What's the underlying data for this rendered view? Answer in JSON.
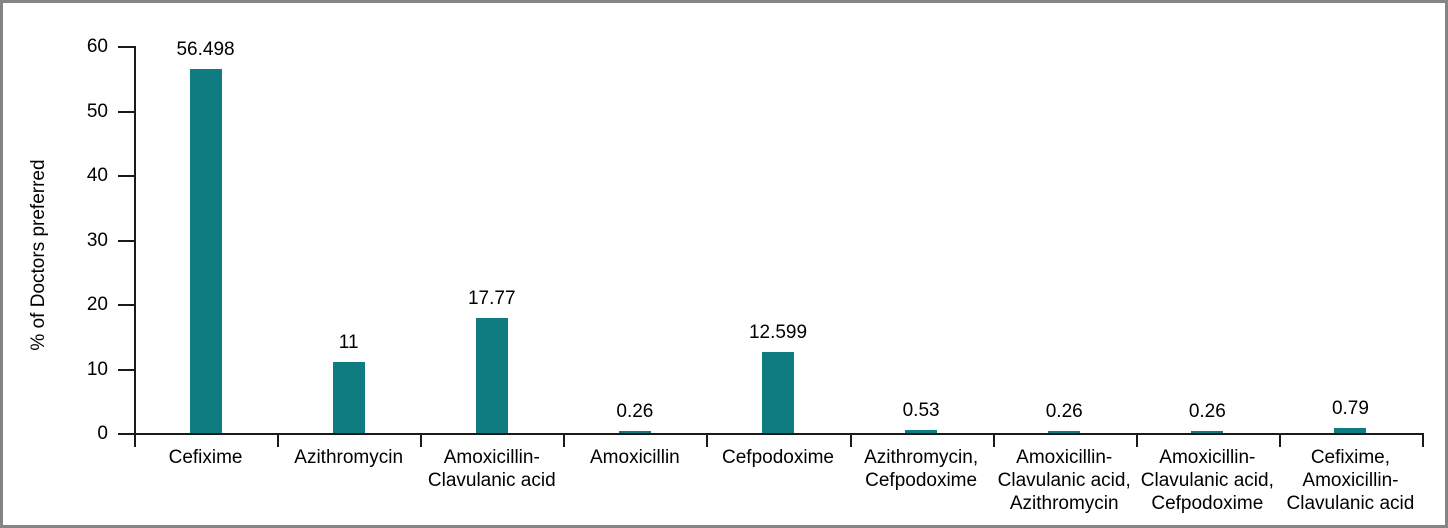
{
  "figure": {
    "background_color": "#ffffff",
    "frame_border_color": "#848484"
  },
  "chart_data": {
    "type": "bar",
    "title": "",
    "xlabel": "",
    "ylabel": "% of Doctors preferred",
    "categories": [
      "Cefixime",
      "Azithromycin",
      "Amoxicillin-Clavulanic acid",
      "Amoxicillin",
      "Cefpodoxime",
      "Azithromycin, Cefpodoxime",
      "Amoxicillin-Clavulanic acid, Azithromycin",
      "Amoxicillin-Clavulanic acid, Cefpodoxime",
      "Cefixime, Amoxicillin-Clavulanic acid"
    ],
    "category_tick_labels": [
      "Cefixime",
      "Azithromycin",
      "Amoxicillin-\nClavulanic acid",
      "Amoxicillin",
      "Cefpodoxime",
      "Azithromycin,\nCefpodoxime",
      "Amoxicillin-\nClavulanic acid,\nAzithromycin",
      "Amoxicillin-\nClavulanic acid,\nCefpodoxime",
      "Cefixime,\nAmoxicillin-\nClavulanic acid"
    ],
    "values": [
      56.498,
      11,
      17.77,
      0.26,
      12.599,
      0.53,
      0.26,
      0.26,
      0.79
    ],
    "value_labels": [
      "56.498",
      "11",
      "17.77",
      "0.26",
      "12.599",
      "0.53",
      "0.26",
      "0.26",
      "0.79"
    ],
    "yticks": [
      0,
      10,
      20,
      30,
      40,
      50,
      60
    ],
    "ylim": [
      0,
      60
    ],
    "grid": false,
    "legend": false,
    "bar_color": "#0e7c80",
    "axis_color": "#1a1a1a",
    "text_color": "#000000"
  }
}
